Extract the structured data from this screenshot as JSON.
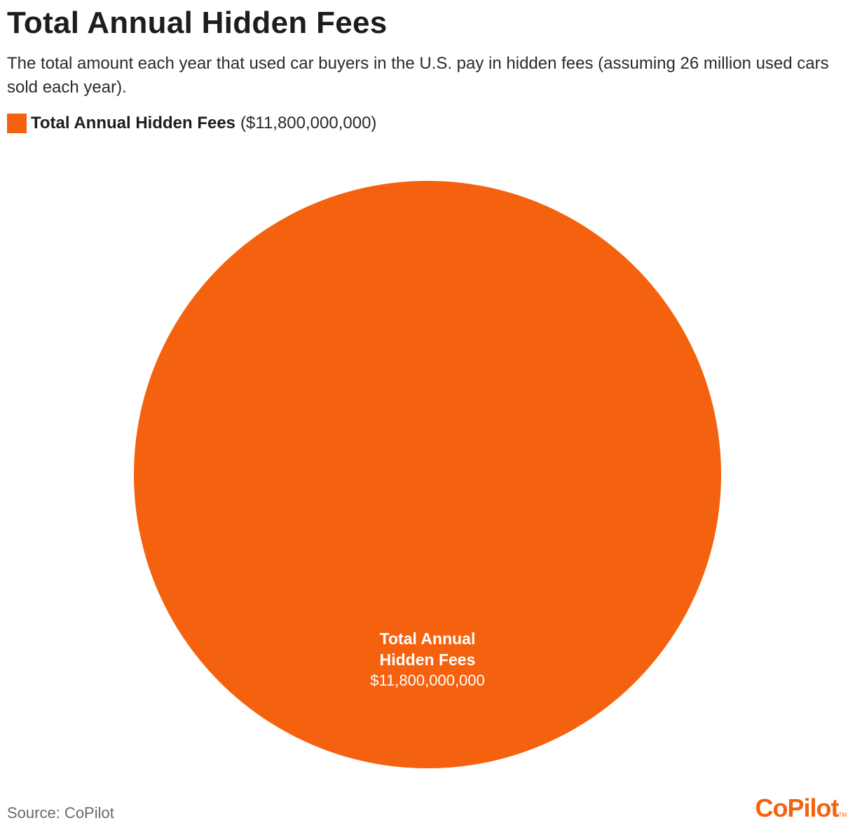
{
  "chart_data": {
    "type": "pie",
    "title": "Total Annual Hidden Fees",
    "subtitle": "The total amount each year that used car buyers in the U.S. pay in hidden fees (assuming 26 million used cars sold each year).",
    "legend_placement": "top-left",
    "slices": [
      {
        "label": "Total Annual Hidden Fees",
        "label_lines": [
          "Total Annual",
          "Hidden Fees"
        ],
        "value": 11800000000,
        "value_label": "$11,800,000,000",
        "legend_value": "($11,800,000,000)",
        "color": "#F5620F"
      }
    ]
  },
  "footer": {
    "source": "Source: CoPilot",
    "logo_text": "CoPilot",
    "logo_tm": "TM",
    "logo_color": "#F5620F"
  }
}
